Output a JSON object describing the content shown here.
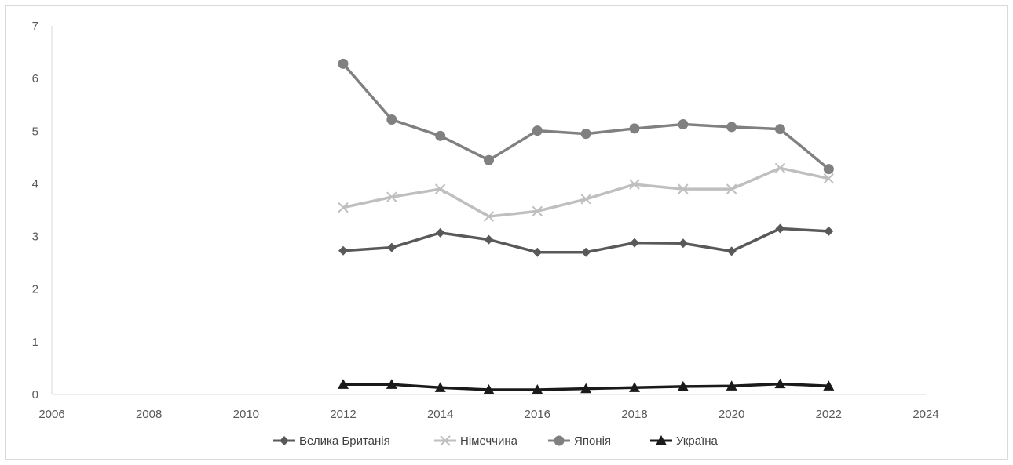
{
  "chart_data": {
    "type": "line",
    "title": "",
    "xlabel": "",
    "ylabel": "",
    "xlim": [
      2006,
      2024
    ],
    "ylim": [
      0,
      7
    ],
    "x_ticks": [
      2006,
      2008,
      2010,
      2012,
      2014,
      2016,
      2018,
      2020,
      2022,
      2024
    ],
    "y_ticks": [
      0,
      1,
      2,
      3,
      4,
      5,
      6,
      7
    ],
    "grid": false,
    "legend_position": "bottom",
    "x": [
      2012,
      2013,
      2014,
      2015,
      2016,
      2017,
      2018,
      2019,
      2020,
      2021,
      2022
    ],
    "series": [
      {
        "name": "Велика Британія",
        "marker": "diamond",
        "color": "#595959",
        "values": [
          2.73,
          2.79,
          3.07,
          2.94,
          2.7,
          2.7,
          2.88,
          2.87,
          2.72,
          3.15,
          3.1
        ]
      },
      {
        "name": "Німеччина",
        "marker": "x",
        "color": "#bfbfbf",
        "values": [
          3.55,
          3.75,
          3.9,
          3.38,
          3.48,
          3.71,
          3.99,
          3.9,
          3.9,
          4.3,
          4.1
        ]
      },
      {
        "name": "Японія",
        "marker": "circle",
        "color": "#808080",
        "values": [
          6.28,
          5.22,
          4.91,
          4.45,
          5.01,
          4.95,
          5.05,
          5.13,
          5.08,
          5.04,
          4.28
        ]
      },
      {
        "name": "Україна",
        "marker": "triangle",
        "color": "#1a1a1a",
        "values": [
          0.19,
          0.19,
          0.13,
          0.09,
          0.09,
          0.11,
          0.13,
          0.15,
          0.16,
          0.2,
          0.16
        ]
      }
    ]
  }
}
